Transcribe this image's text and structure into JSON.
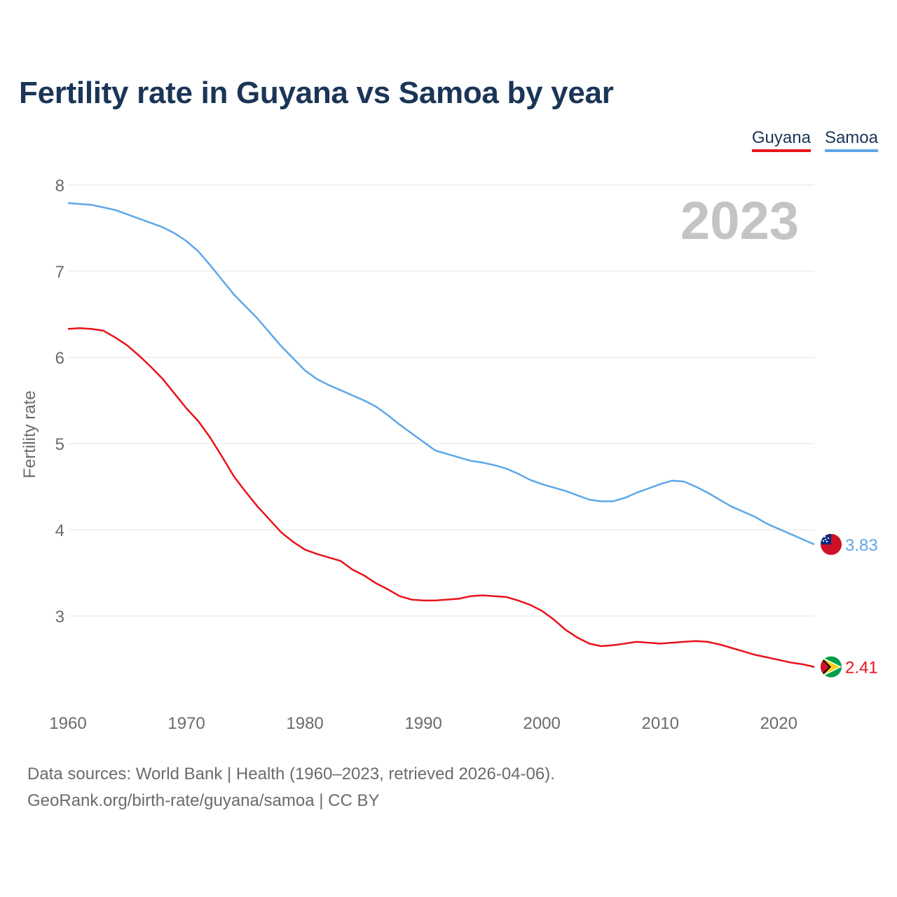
{
  "chart_data": {
    "type": "line",
    "title": "Fertility rate in Guyana vs Samoa by year",
    "ylabel": "Fertility rate",
    "xlabel": "",
    "xlim": [
      1960,
      2023
    ],
    "ylim": [
      2,
      8
    ],
    "yticks": [
      3,
      4,
      5,
      6,
      7,
      8
    ],
    "xticks": [
      1960,
      1970,
      1980,
      1990,
      2000,
      2010,
      2020
    ],
    "year_label": "2023",
    "x": [
      1960,
      1961,
      1962,
      1963,
      1964,
      1965,
      1966,
      1967,
      1968,
      1969,
      1970,
      1971,
      1972,
      1973,
      1974,
      1975,
      1976,
      1977,
      1978,
      1979,
      1980,
      1981,
      1982,
      1983,
      1984,
      1985,
      1986,
      1987,
      1988,
      1989,
      1990,
      1991,
      1992,
      1993,
      1994,
      1995,
      1996,
      1997,
      1998,
      1999,
      2000,
      2001,
      2002,
      2003,
      2004,
      2005,
      2006,
      2007,
      2008,
      2009,
      2010,
      2011,
      2012,
      2013,
      2014,
      2015,
      2016,
      2017,
      2018,
      2019,
      2020,
      2021,
      2022,
      2023
    ],
    "series": [
      {
        "name": "Guyana",
        "color": "#e8131b",
        "end_label": "2.41",
        "flag": "guyana-flag",
        "values": [
          6.33,
          6.34,
          6.33,
          6.31,
          6.23,
          6.14,
          6.02,
          5.89,
          5.75,
          5.58,
          5.41,
          5.26,
          5.07,
          4.85,
          4.62,
          4.44,
          4.27,
          4.12,
          3.97,
          3.86,
          3.77,
          3.72,
          3.68,
          3.64,
          3.54,
          3.47,
          3.38,
          3.31,
          3.23,
          3.19,
          3.18,
          3.18,
          3.19,
          3.2,
          3.23,
          3.24,
          3.23,
          3.22,
          3.18,
          3.13,
          3.06,
          2.96,
          2.84,
          2.75,
          2.68,
          2.65,
          2.66,
          2.68,
          2.7,
          2.69,
          2.68,
          2.69,
          2.7,
          2.71,
          2.7,
          2.67,
          2.63,
          2.59,
          2.55,
          2.52,
          2.49,
          2.46,
          2.44,
          2.41
        ]
      },
      {
        "name": "Samoa",
        "color": "#5ea7e8",
        "end_label": "3.83",
        "flag": "samoa-flag",
        "values": [
          7.79,
          7.78,
          7.77,
          7.74,
          7.71,
          7.66,
          7.61,
          7.56,
          7.51,
          7.44,
          7.35,
          7.23,
          7.07,
          6.9,
          6.73,
          6.59,
          6.45,
          6.29,
          6.13,
          5.99,
          5.85,
          5.75,
          5.68,
          5.62,
          5.56,
          5.5,
          5.43,
          5.33,
          5.22,
          5.12,
          5.02,
          4.92,
          4.88,
          4.84,
          4.8,
          4.78,
          4.75,
          4.71,
          4.65,
          4.58,
          4.53,
          4.49,
          4.45,
          4.4,
          4.35,
          4.33,
          4.33,
          4.37,
          4.43,
          4.48,
          4.53,
          4.57,
          4.56,
          4.5,
          4.43,
          4.35,
          4.27,
          4.21,
          4.15,
          4.07,
          4.01,
          3.95,
          3.89,
          3.83
        ]
      }
    ]
  },
  "footer": {
    "line1": "Data sources: World Bank | Health (1960–2023, retrieved 2026-04-06).",
    "line2": "GeoRank.org/birth-rate/guyana/samoa | CC BY"
  }
}
